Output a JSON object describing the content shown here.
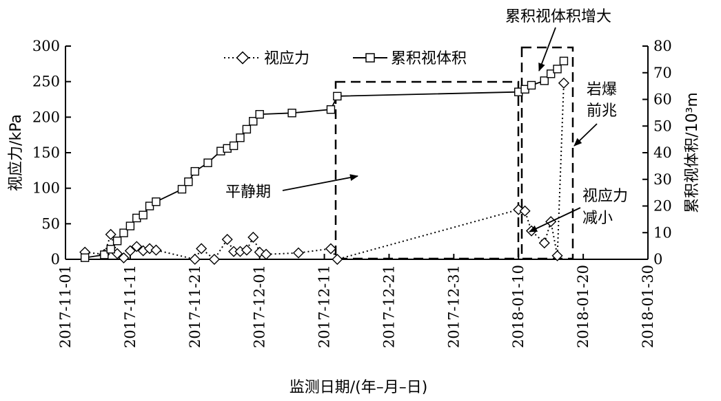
{
  "chart_data": {
    "type": "line",
    "xlabel": "监测日期/(年–月–日)",
    "ylabel_left": "视应力/kPa",
    "ylabel_right": "累积视体积/10³m",
    "ylim_left": [
      0,
      300
    ],
    "ylim_right": [
      0,
      80
    ],
    "yticks_left": [
      "0",
      "50",
      "100",
      "150",
      "200",
      "250",
      "300"
    ],
    "yticks_right": [
      "0",
      "10",
      "20",
      "30",
      "40",
      "50",
      "60",
      "70",
      "80"
    ],
    "xlim": [
      "2017-11-01",
      "2018-01-30"
    ],
    "xticks": [
      "2017-11-01",
      "2017-11-11",
      "2017-11-21",
      "2017-12-01",
      "2017-12-11",
      "2017-12-21",
      "2017-12-31",
      "2018-01-10",
      "2018-01-20",
      "2018-01-30"
    ],
    "grid": false,
    "legend": {
      "position": "top",
      "entries": [
        "视应力",
        "累积视体积"
      ]
    },
    "series": [
      {
        "name": "视应力",
        "axis": "left",
        "style": "dotted",
        "marker": "diamond",
        "x": [
          "2017-11-04",
          "2017-11-07",
          "2017-11-08",
          "2017-11-09",
          "2017-11-10",
          "2017-11-11",
          "2017-11-12",
          "2017-11-13",
          "2017-11-14",
          "2017-11-15",
          "2017-11-21",
          "2017-11-22",
          "2017-11-24",
          "2017-11-26",
          "2017-11-27",
          "2017-11-28",
          "2017-11-29",
          "2017-11-30",
          "2017-12-01",
          "2017-12-02",
          "2017-12-07",
          "2017-12-12",
          "2017-12-13",
          "2018-01-10",
          "2018-01-11",
          "2018-01-12",
          "2018-01-14",
          "2018-01-15",
          "2018-01-16",
          "2018-01-17"
        ],
        "values": [
          10,
          7,
          35,
          8,
          2,
          12,
          18,
          12,
          15,
          13,
          0,
          15,
          0,
          28,
          11,
          11,
          13,
          31,
          10,
          7,
          9,
          15,
          0,
          70,
          68,
          40,
          23,
          53,
          5,
          248
        ]
      },
      {
        "name": "累积视体积",
        "axis": "right",
        "style": "solid",
        "marker": "square",
        "x": [
          "2017-11-04",
          "2017-11-07",
          "2017-11-08",
          "2017-11-09",
          "2017-11-10",
          "2017-11-11",
          "2017-11-12",
          "2017-11-13",
          "2017-11-14",
          "2017-11-15",
          "2017-11-19",
          "2017-11-20",
          "2017-11-21",
          "2017-11-23",
          "2017-11-25",
          "2017-11-26",
          "2017-11-27",
          "2017-11-28",
          "2017-11-29",
          "2017-11-30",
          "2017-12-01",
          "2017-12-06",
          "2017-12-12",
          "2017-12-13",
          "2018-01-10",
          "2018-01-11",
          "2018-01-12",
          "2018-01-14",
          "2018-01-15",
          "2018-01-16",
          "2018-01-17"
        ],
        "values": [
          0.6,
          1.7,
          3.8,
          6.9,
          9.9,
          12.5,
          15.5,
          16.6,
          20,
          21.6,
          26.3,
          29.1,
          33,
          36.2,
          40.6,
          41.6,
          42.6,
          45.6,
          48.8,
          51.8,
          54.4,
          54.9,
          56.2,
          61.2,
          62.8,
          63.8,
          65.3,
          67,
          69.6,
          71.4,
          74.4
        ]
      }
    ],
    "annotations": [
      {
        "text": "累积视体积增大",
        "kind": "label"
      },
      {
        "text": "平静期",
        "kind": "label"
      },
      {
        "text": "岩爆",
        "kind": "label"
      },
      {
        "text": "前兆",
        "kind": "label"
      },
      {
        "text": "视应力",
        "kind": "label"
      },
      {
        "text": "减小",
        "kind": "label"
      }
    ]
  }
}
